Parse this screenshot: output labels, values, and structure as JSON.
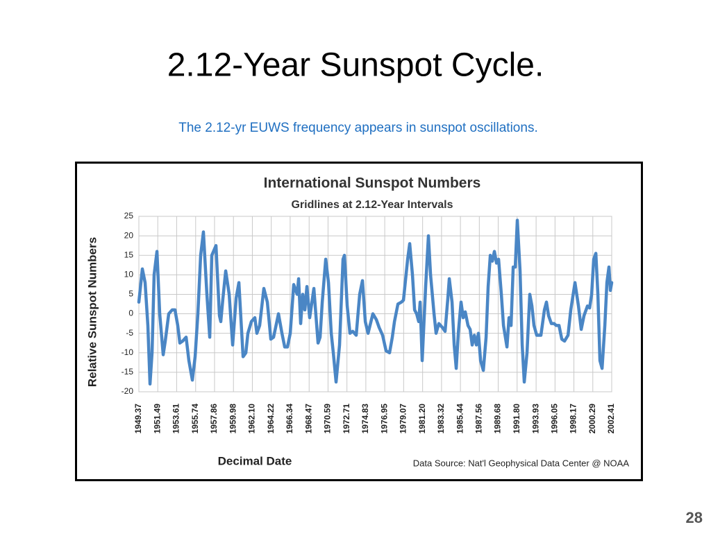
{
  "slide": {
    "title": "2.12-Year Sunspot Cycle.",
    "subtitle": "The 2.12-yr EUWS frequency appears in sunspot oscillations.",
    "page_number": "28"
  },
  "chart_data": {
    "type": "line",
    "title": "International Sunspot Numbers",
    "subtitle": "Gridlines at 2.12-Year Intervals",
    "x_label": "Decimal Date",
    "y_label": "Relative Sunspot Numbers",
    "source": "Data Source:  Nat'l Geophysical Data Center @ NOAA",
    "color": "#4a86c5",
    "grid": true,
    "xlim": [
      1949.37,
      2002.41
    ],
    "ylim": [
      -20,
      25
    ],
    "yticks": [
      -20,
      -15,
      -10,
      -5,
      0,
      5,
      10,
      15,
      20,
      25
    ],
    "xticks": [
      1949.37,
      1951.49,
      1953.61,
      1955.74,
      1957.86,
      1959.98,
      {
        "value": 1962.1,
        "label": "1962.10"
      },
      1964.22,
      1966.34,
      1968.47,
      1970.59,
      1972.71,
      1974.83,
      1976.95,
      1979.07,
      {
        "value": 1981.2,
        "label": "1981.20"
      },
      1983.32,
      1985.44,
      1987.56,
      1989.68,
      {
        "value": 1991.8,
        "label": "1991.80"
      },
      1993.93,
      1996.05,
      1998.17,
      2000.29,
      2002.41
    ],
    "x": [
      1949.37,
      1949.76,
      1950.07,
      1950.38,
      1950.62,
      1950.85,
      1951.08,
      1951.4,
      1951.71,
      1952.1,
      1952.33,
      1952.72,
      1953.11,
      1953.42,
      1953.73,
      1953.97,
      1954.28,
      1954.67,
      1954.98,
      1955.37,
      1955.68,
      1955.99,
      1956.3,
      1956.61,
      1957.0,
      1957.32,
      1957.55,
      1958.02,
      1958.41,
      1958.56,
      1958.8,
      1959.11,
      1959.5,
      1959.89,
      1960.28,
      1960.59,
      1961.06,
      1961.37,
      1961.6,
      1961.99,
      1962.38,
      1962.61,
      1962.92,
      1963.39,
      1963.78,
      1964.17,
      1964.48,
      1965.03,
      1965.42,
      1965.73,
      1966.04,
      1966.35,
      1966.74,
      1967.13,
      1967.29,
      1967.52,
      1967.75,
      1967.99,
      1968.22,
      1968.53,
      1969.0,
      1969.47,
      1969.7,
      1969.94,
      1970.33,
      1970.64,
      1970.95,
      1971.18,
      1971.49,
      1971.88,
      1972.27,
      1972.43,
      1972.74,
      1973.05,
      1973.36,
      1973.75,
      1974.14,
      1974.45,
      1974.77,
      1975.08,
      1975.62,
      1976.01,
      1976.32,
      1976.71,
      1977.1,
      1977.49,
      1977.8,
      1978.04,
      1978.43,
      1978.82,
      1979.05,
      1979.52,
      1979.75,
      1980.06,
      1980.3,
      1980.53,
      1980.76,
      1980.92,
      1981.15,
      1981.54,
      1981.85,
      1982.09,
      1982.48,
      1982.71,
      1983.02,
      1983.41,
      1983.72,
      1984.03,
      1984.19,
      1984.5,
      1984.74,
      1984.97,
      1985.2,
      1985.51,
      1985.75,
      1985.98,
      1986.29,
      1986.53,
      1986.76,
      1987.0,
      1987.23,
      1987.46,
      1987.7,
      1988.01,
      1988.32,
      1988.55,
      1988.79,
      1989.02,
      1989.25,
      1989.49,
      1989.72,
      1990.03,
      1990.27,
      1990.66,
      1990.89,
      1991.12,
      1991.36,
      1991.59,
      1991.82,
      1992.13,
      1992.37,
      1992.6,
      1992.91,
      1993.22,
      1993.46,
      1993.69,
      1994.0,
      1994.47,
      1994.86,
      1995.09,
      1995.33,
      1995.64,
      1995.95,
      1996.18,
      1996.5,
      1996.81,
      1997.12,
      1997.51,
      1997.82,
      1998.29,
      1998.68,
      1998.99,
      1999.3,
      1999.69,
      1999.93,
      2000.16,
      2000.39,
      2000.63,
      2000.86,
      2001.09,
      2001.33,
      2001.64,
      2001.87,
      2002.1,
      2002.26,
      2002.41
    ],
    "values": [
      3,
      11.5,
      8,
      -3,
      -18,
      -10,
      10,
      16,
      0,
      -10.5,
      -7,
      0,
      1,
      1,
      -3,
      -7.5,
      -7,
      -6,
      -12,
      -17,
      -11,
      0,
      15,
      21,
      5,
      -6,
      15,
      17.5,
      -0.5,
      -2,
      4,
      11,
      5,
      -8,
      4,
      8,
      -11,
      -10,
      -5,
      -2,
      -1,
      -5,
      -3,
      6.5,
      3,
      -6.5,
      -6,
      0,
      -5,
      -8.5,
      -8.5,
      -5,
      7.5,
      5,
      9,
      -2.5,
      5,
      1,
      7,
      -1,
      6.5,
      -7.5,
      -6,
      3,
      14,
      8,
      -5,
      -10,
      -17.5,
      -8,
      14,
      15,
      2,
      -5,
      -4.5,
      -5.5,
      5,
      8.5,
      -2,
      -5,
      0,
      -1.5,
      -3.5,
      -5.5,
      -9.5,
      -10,
      -6,
      -2,
      2.5,
      3,
      3.5,
      14,
      18,
      10,
      1,
      0,
      -2,
      3,
      -12,
      7,
      20,
      10,
      0,
      -5,
      -2.5,
      -3.5,
      -4.5,
      4,
      9,
      3,
      -8,
      -14,
      -5,
      3,
      -1,
      0.5,
      -3,
      -4,
      -8,
      -5.5,
      -8,
      -5,
      -12,
      -14.5,
      -6,
      7,
      15,
      13.5,
      16,
      13,
      14,
      5,
      -3,
      -8.5,
      -1,
      -3,
      12,
      12,
      24,
      11,
      -8,
      -17.5,
      -10,
      5,
      2,
      -3,
      -5.5,
      -5.5,
      1,
      3,
      -0.5,
      -2.5,
      -2.5,
      -3,
      -3,
      -6.5,
      -7,
      -5.5,
      1,
      8,
      2,
      -4,
      -0.5,
      2,
      1.5,
      5,
      14,
      15.5,
      5,
      -12,
      -14,
      -3,
      8,
      12,
      6,
      8
    ]
  }
}
